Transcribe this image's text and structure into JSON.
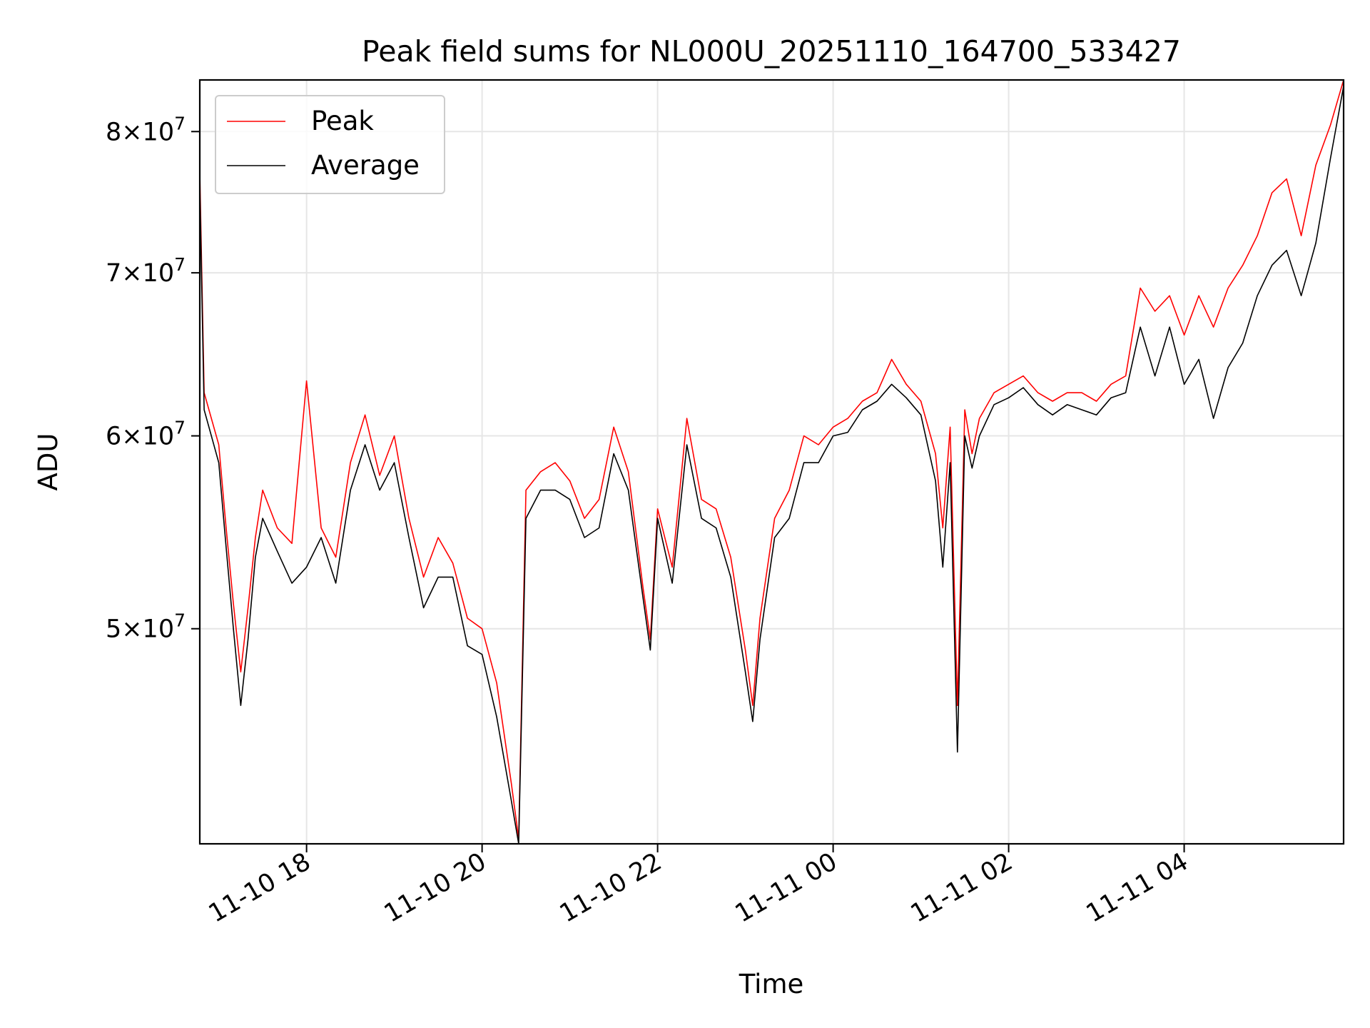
{
  "chart_data": {
    "type": "line",
    "title": "Peak field sums for NL000U_20251110_164700_533427",
    "xlabel": "Time",
    "ylabel": "ADU",
    "x_start": "2025-11-10 16:47",
    "x_end": "2025-11-11 05:49",
    "xlim": [
      "2025-11-10 16:47",
      "2025-11-11 05:49"
    ],
    "ylim": [
      40800000,
      84000000
    ],
    "y_scale": "log",
    "grid": true,
    "legend": "upper-left",
    "x_ticks": [
      {
        "value": "2025-11-10 18:00",
        "label": "11-10 18"
      },
      {
        "value": "2025-11-10 20:00",
        "label": "11-10 20"
      },
      {
        "value": "2025-11-10 22:00",
        "label": "11-10 22"
      },
      {
        "value": "2025-11-11 00:00",
        "label": "11-11 00"
      },
      {
        "value": "2025-11-11 02:00",
        "label": "11-11 02"
      },
      {
        "value": "2025-11-11 04:00",
        "label": "11-11 04"
      }
    ],
    "y_ticks": [
      {
        "value": 50000000,
        "mantissa": "5",
        "exponent": "7"
      },
      {
        "value": 60000000,
        "mantissa": "6",
        "exponent": "7"
      },
      {
        "value": 70000000,
        "mantissa": "7",
        "exponent": "7"
      },
      {
        "value": 80000000,
        "mantissa": "8",
        "exponent": "7"
      }
    ],
    "times": [
      "2025-11-10 16:47",
      "2025-11-10 16:50",
      "2025-11-10 17:00",
      "2025-11-10 17:05",
      "2025-11-10 17:10",
      "2025-11-10 17:15",
      "2025-11-10 17:20",
      "2025-11-10 17:25",
      "2025-11-10 17:30",
      "2025-11-10 17:40",
      "2025-11-10 17:50",
      "2025-11-10 18:00",
      "2025-11-10 18:10",
      "2025-11-10 18:20",
      "2025-11-10 18:30",
      "2025-11-10 18:40",
      "2025-11-10 18:50",
      "2025-11-10 19:00",
      "2025-11-10 19:10",
      "2025-11-10 19:20",
      "2025-11-10 19:30",
      "2025-11-10 19:40",
      "2025-11-10 19:50",
      "2025-11-10 20:00",
      "2025-11-10 20:10",
      "2025-11-10 20:20",
      "2025-11-10 20:25",
      "2025-11-10 20:30",
      "2025-11-10 20:40",
      "2025-11-10 20:50",
      "2025-11-10 21:00",
      "2025-11-10 21:10",
      "2025-11-10 21:20",
      "2025-11-10 21:30",
      "2025-11-10 21:40",
      "2025-11-10 21:50",
      "2025-11-10 21:55",
      "2025-11-10 22:00",
      "2025-11-10 22:10",
      "2025-11-10 22:20",
      "2025-11-10 22:30",
      "2025-11-10 22:40",
      "2025-11-10 22:50",
      "2025-11-10 23:00",
      "2025-11-10 23:05",
      "2025-11-10 23:10",
      "2025-11-10 23:20",
      "2025-11-10 23:30",
      "2025-11-10 23:40",
      "2025-11-10 23:50",
      "2025-11-11 00:00",
      "2025-11-11 00:10",
      "2025-11-11 00:20",
      "2025-11-11 00:30",
      "2025-11-11 00:40",
      "2025-11-11 00:50",
      "2025-11-11 01:00",
      "2025-11-11 01:10",
      "2025-11-11 01:15",
      "2025-11-11 01:20",
      "2025-11-11 01:25",
      "2025-11-11 01:30",
      "2025-11-11 01:35",
      "2025-11-11 01:40",
      "2025-11-11 01:50",
      "2025-11-11 02:00",
      "2025-11-11 02:10",
      "2025-11-11 02:20",
      "2025-11-11 02:30",
      "2025-11-11 02:40",
      "2025-11-11 02:50",
      "2025-11-11 03:00",
      "2025-11-11 03:10",
      "2025-11-11 03:20",
      "2025-11-11 03:30",
      "2025-11-11 03:40",
      "2025-11-11 03:50",
      "2025-11-11 04:00",
      "2025-11-11 04:10",
      "2025-11-11 04:20",
      "2025-11-11 04:30",
      "2025-11-11 04:40",
      "2025-11-11 04:50",
      "2025-11-11 05:00",
      "2025-11-11 05:10",
      "2025-11-11 05:20",
      "2025-11-11 05:30",
      "2025-11-11 05:40",
      "2025-11-11 05:49"
    ],
    "series": [
      {
        "name": "Peak",
        "color": "#ff0000",
        "values": [
          77000000,
          62500000,
          59500000,
          55000000,
          51200000,
          48000000,
          51000000,
          54500000,
          57000000,
          55000000,
          54200000,
          63200000,
          55000000,
          53500000,
          58500000,
          61200000,
          57800000,
          60000000,
          55500000,
          52500000,
          54500000,
          53200000,
          50500000,
          50000000,
          47500000,
          43200000,
          41000000,
          57000000,
          58000000,
          58500000,
          57500000,
          55500000,
          56500000,
          60500000,
          58000000,
          52000000,
          49500000,
          56000000,
          53000000,
          61000000,
          56500000,
          56000000,
          53500000,
          49000000,
          46500000,
          50500000,
          55500000,
          57000000,
          60000000,
          59500000,
          60500000,
          61000000,
          62000000,
          62500000,
          64500000,
          63000000,
          62000000,
          59000000,
          55000000,
          60500000,
          46500000,
          61500000,
          59000000,
          61000000,
          62500000,
          63000000,
          63500000,
          62500000,
          62000000,
          62500000,
          62500000,
          62000000,
          63000000,
          63500000,
          69000000,
          67500000,
          68500000,
          66000000,
          68500000,
          66500000,
          69000000,
          70500000,
          72500000,
          75500000,
          76500000,
          72500000,
          77500000,
          80500000,
          84000000
        ]
      },
      {
        "name": "Average",
        "color": "#000000",
        "values": [
          76000000,
          61500000,
          58500000,
          54000000,
          50000000,
          46500000,
          49500000,
          53500000,
          55500000,
          53800000,
          52200000,
          53000000,
          54500000,
          52200000,
          57000000,
          59500000,
          57000000,
          58500000,
          54500000,
          51000000,
          52500000,
          52500000,
          49200000,
          48800000,
          46000000,
          42500000,
          40800000,
          55500000,
          57000000,
          57000000,
          56500000,
          54500000,
          55000000,
          59000000,
          57000000,
          51500000,
          49000000,
          55500000,
          52200000,
          59500000,
          55500000,
          55000000,
          52500000,
          48000000,
          45800000,
          49500000,
          54500000,
          55500000,
          58500000,
          58500000,
          60000000,
          60200000,
          61500000,
          62000000,
          63000000,
          62200000,
          61200000,
          57500000,
          53000000,
          58500000,
          44500000,
          60000000,
          58200000,
          60000000,
          61800000,
          62200000,
          62800000,
          61800000,
          61200000,
          61800000,
          61500000,
          61200000,
          62200000,
          62500000,
          66500000,
          63500000,
          66500000,
          63000000,
          64500000,
          61000000,
          64000000,
          65500000,
          68500000,
          70500000,
          71500000,
          68500000,
          72000000,
          78000000,
          83500000
        ]
      }
    ]
  }
}
